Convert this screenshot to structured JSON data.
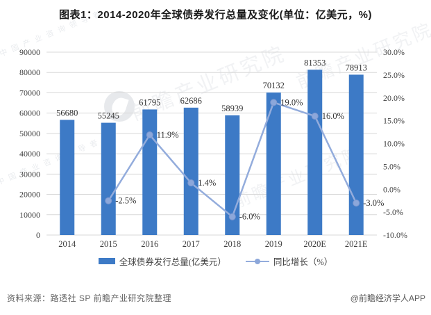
{
  "title": "图表1：2014-2020年全球债券发行总量及变化(单位：亿美元，%)",
  "chart_data": {
    "type": "combo-bar-line",
    "categories": [
      "2014",
      "2015",
      "2016",
      "2017",
      "2018",
      "2019",
      "2020E",
      "2021E"
    ],
    "series": [
      {
        "name": "全球债券发行总量(亿美元）",
        "type": "bar",
        "axis": "left",
        "values": [
          56680,
          55245,
          61795,
          62686,
          58939,
          70132,
          81353,
          78913
        ],
        "value_labels": [
          "56680",
          "55245",
          "61795",
          "62686",
          "58939",
          "70132",
          "81353",
          "78913"
        ]
      },
      {
        "name": "同比增长（%）",
        "type": "line",
        "axis": "right",
        "values": [
          null,
          -2.5,
          11.9,
          1.4,
          -6.0,
          19.0,
          16.0,
          -3.0
        ],
        "value_labels": [
          "",
          "-2.5%",
          "11.9%",
          "1.4%",
          "-6.0%",
          "19.0%",
          "16.0%",
          "-3.0%"
        ]
      }
    ],
    "left_axis": {
      "min": 0,
      "max": 90000,
      "step": 10000,
      "tick_labels_top_down": [
        "90000",
        "80000",
        "70000",
        "60000",
        "50000",
        "40000",
        "30000",
        "20000",
        "10000",
        "0"
      ]
    },
    "right_axis": {
      "min": -10,
      "max": 30,
      "step": 5,
      "tick_labels_top_down": [
        "30.0%",
        "25.0%",
        "20.0%",
        "15.0%",
        "10.0%",
        "5.0%",
        "0.0%",
        "-5.0%",
        "-10.0%"
      ]
    },
    "grid": true,
    "legend_position": "bottom"
  },
  "colors": {
    "bar": "#3d7ac6",
    "line": "#93acdc",
    "marker_fill": "#8ca7da",
    "marker_stroke": "#7e99d0",
    "grid": "#d9d9d9",
    "axis_text": "#404040",
    "data_label": "#333333"
  },
  "footer": {
    "source": "资料来源：路透社 SP 前瞻产业研究院整理",
    "brand": "@前瞻经济学人APP"
  },
  "watermark": {
    "text": "前瞻产业研究院",
    "subtext": "中 国 产 业 咨 询 领 导 者"
  }
}
